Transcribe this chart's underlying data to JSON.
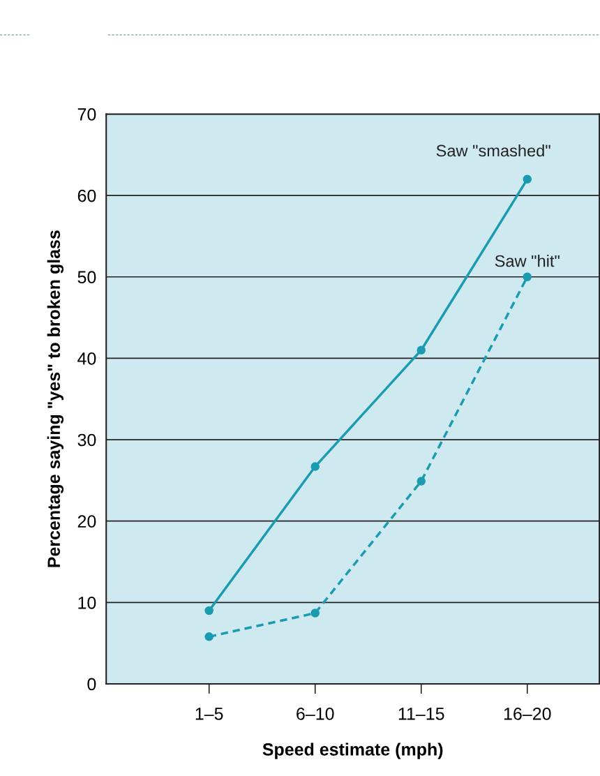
{
  "chart_data": {
    "type": "line",
    "xlabel": "Speed estimate (mph)",
    "ylabel": "Percentage saying \"yes\" to broken glass",
    "categories": [
      "1–5",
      "6–10",
      "11–15",
      "16–20"
    ],
    "series": [
      {
        "name": "Saw \"smashed\"",
        "color": "#1b9bb0",
        "values": [
          9,
          26.7,
          41,
          62
        ],
        "line_style": "solid"
      },
      {
        "name": "Saw \"hit\"",
        "color": "#1b9bb0",
        "values": [
          5.8,
          8.7,
          24.9,
          50
        ],
        "line_style": "dashed"
      }
    ],
    "ylim": [
      0,
      70
    ],
    "yticks": [
      0,
      10,
      20,
      30,
      40,
      50,
      60,
      70
    ],
    "grid": "y",
    "marker": "circle",
    "legend": false
  }
}
